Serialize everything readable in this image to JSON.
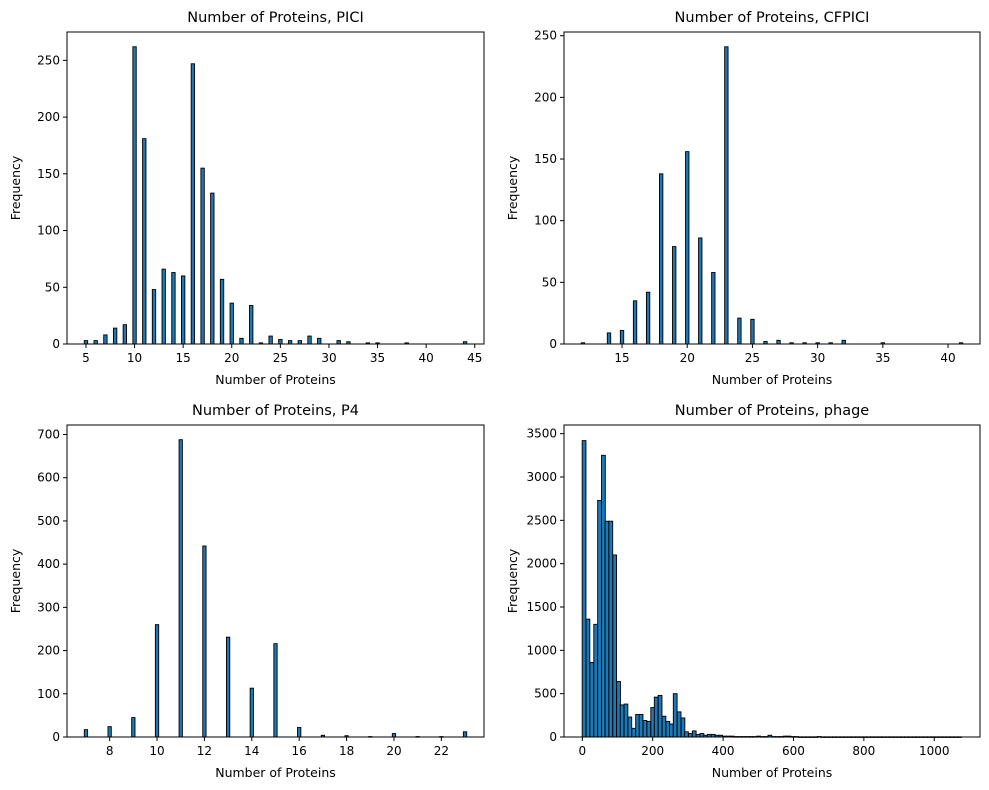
{
  "chart_data": [
    {
      "type": "bar",
      "title": "Number of Proteins, PICI",
      "xlabel": "Number of Proteins",
      "ylabel": "Frequency",
      "xlim": [
        3.05,
        45.95
      ],
      "ylim": [
        0,
        275
      ],
      "xticks": [
        5,
        10,
        15,
        20,
        25,
        30,
        35,
        40,
        45
      ],
      "yticks": [
        0,
        50,
        100,
        150,
        200,
        250
      ],
      "bar_width": 0.35,
      "color": "#1f77b4",
      "x": [
        5,
        6,
        7,
        8,
        9,
        10,
        11,
        12,
        13,
        14,
        15,
        16,
        17,
        18,
        19,
        20,
        21,
        22,
        23,
        24,
        25,
        26,
        27,
        28,
        29,
        31,
        32,
        34,
        35,
        38,
        44
      ],
      "values": [
        3,
        3,
        8,
        14,
        17,
        262,
        181,
        48,
        66,
        63,
        60,
        247,
        155,
        133,
        57,
        36,
        5,
        34,
        1,
        7,
        4,
        3,
        3,
        7,
        5,
        3,
        2,
        1,
        1,
        1,
        2
      ]
    },
    {
      "type": "bar",
      "title": "Number of Proteins, CFPICI",
      "xlabel": "Number of Proteins",
      "ylabel": "Frequency",
      "xlim": [
        10.55,
        42.45
      ],
      "ylim": [
        0,
        253
      ],
      "xticks": [
        15,
        20,
        25,
        30,
        35,
        40
      ],
      "yticks": [
        0,
        50,
        100,
        150,
        200,
        250
      ],
      "bar_width": 0.26,
      "color": "#1f77b4",
      "x": [
        12,
        14,
        15,
        16,
        17,
        18,
        19,
        20,
        21,
        22,
        23,
        24,
        25,
        26,
        27,
        28,
        29,
        30,
        31,
        32,
        35,
        41
      ],
      "values": [
        1,
        9,
        11,
        35,
        42,
        138,
        79,
        156,
        86,
        58,
        241,
        21,
        20,
        2,
        3,
        1,
        1,
        1,
        1,
        3,
        1,
        1
      ]
    },
    {
      "type": "bar",
      "title": "Number of Proteins, P4",
      "xlabel": "Number of Proteins",
      "ylabel": "Frequency",
      "xlim": [
        6.2,
        23.8
      ],
      "ylim": [
        0,
        722
      ],
      "xticks": [
        8,
        10,
        12,
        14,
        16,
        18,
        20,
        22
      ],
      "yticks": [
        0,
        100,
        200,
        300,
        400,
        500,
        600,
        700
      ],
      "bar_width": 0.14,
      "color": "#1f77b4",
      "x": [
        7,
        8,
        9,
        10,
        11,
        12,
        13,
        14,
        15,
        16,
        17,
        18,
        19,
        20,
        21,
        22,
        23
      ],
      "values": [
        17,
        24,
        45,
        260,
        688,
        442,
        231,
        113,
        216,
        22,
        4,
        3,
        1,
        8,
        1,
        1,
        12
      ]
    },
    {
      "type": "bar",
      "title": "Number of Proteins, phage",
      "xlabel": "Number of Proteins",
      "ylabel": "Frequency",
      "xlim": [
        -52,
        1130
      ],
      "ylim": [
        0,
        3600
      ],
      "xticks": [
        0,
        200,
        400,
        600,
        800,
        1000
      ],
      "yticks": [
        0,
        500,
        1000,
        1500,
        2000,
        2500,
        3000,
        3500
      ],
      "bar_width": 10.75,
      "color": "#1f77b4",
      "x": [
        5,
        16,
        27,
        38,
        49,
        60,
        70,
        81,
        92,
        103,
        113,
        124,
        135,
        146,
        157,
        167,
        178,
        189,
        200,
        210,
        221,
        232,
        243,
        253,
        264,
        275,
        286,
        296,
        307,
        318,
        329,
        340,
        350,
        361,
        372,
        383,
        393,
        404,
        415,
        426,
        436,
        447,
        458,
        469,
        480,
        490,
        501,
        512,
        523,
        533,
        544,
        555,
        566,
        576,
        587,
        598,
        609,
        620,
        630,
        641,
        652,
        663,
        673,
        684,
        695,
        706,
        716,
        727,
        738,
        749,
        760,
        770,
        781,
        792,
        803,
        813,
        824,
        835,
        846,
        856,
        867,
        878,
        889,
        900,
        910,
        921,
        932,
        943,
        953,
        964,
        975,
        986,
        996,
        1007,
        1018,
        1029,
        1040,
        1050,
        1061,
        1072
      ],
      "values": [
        3420,
        1360,
        860,
        1300,
        2730,
        3250,
        2490,
        2490,
        2100,
        640,
        370,
        380,
        230,
        100,
        260,
        260,
        190,
        180,
        340,
        460,
        480,
        240,
        180,
        150,
        500,
        290,
        220,
        60,
        40,
        70,
        30,
        40,
        20,
        30,
        30,
        20,
        20,
        10,
        10,
        10,
        5,
        5,
        5,
        5,
        5,
        5,
        10,
        5,
        5,
        20,
        5,
        5,
        5,
        10,
        10,
        5,
        5,
        2,
        2,
        2,
        2,
        2,
        5,
        2,
        2,
        2,
        2,
        2,
        2,
        2,
        2,
        2,
        2,
        2,
        2,
        2,
        2,
        2,
        2,
        2,
        2,
        2,
        2,
        2,
        2,
        2,
        2,
        2,
        2,
        2,
        2,
        2,
        2,
        2,
        2,
        2,
        2,
        2,
        2,
        2
      ]
    }
  ]
}
